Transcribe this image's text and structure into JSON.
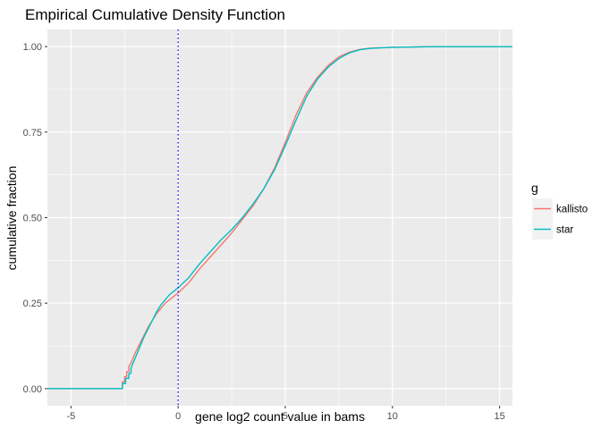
{
  "chart_data": {
    "type": "line",
    "title": "Empirical Cumulative Density Function",
    "xlabel": "gene log2 count value in bams",
    "ylabel": "cumulative fraction",
    "xlim": [
      -6.1,
      15.6
    ],
    "ylim": [
      -0.05,
      1.05
    ],
    "x_ticks": [
      -5,
      0,
      5,
      10,
      15
    ],
    "x_tick_labels": [
      "-5",
      "0",
      "5",
      "10",
      "15"
    ],
    "y_ticks": [
      0,
      0.25,
      0.5,
      0.75,
      1.0
    ],
    "y_tick_labels": [
      "0.00",
      "0.25",
      "0.50",
      "0.75",
      "1.00"
    ],
    "grid": true,
    "legend": {
      "title": "g",
      "position": "right"
    },
    "reference_line": {
      "x": 0,
      "color": "#0000ff",
      "style": "dotted"
    },
    "series": [
      {
        "name": "kallisto",
        "color": "#F8766D",
        "x": [
          -6.1,
          -2.6,
          -2.6,
          -2.5,
          -2.5,
          -2.4,
          -2.4,
          -2.3,
          -2.3,
          -2.2,
          -2.1,
          -2.0,
          -1.8,
          -1.6,
          -1.4,
          -1.2,
          -1.0,
          -0.8,
          -0.6,
          -0.4,
          -0.2,
          0.0,
          0.25,
          0.5,
          1.0,
          1.5,
          2.0,
          2.5,
          3.0,
          3.5,
          4.0,
          4.5,
          5.0,
          5.5,
          6.0,
          6.5,
          7.0,
          7.5,
          8.0,
          8.5,
          9.0,
          10.0,
          11.0,
          12.0,
          15.6
        ],
        "values": [
          0.0,
          0.0,
          0.02,
          0.02,
          0.035,
          0.035,
          0.05,
          0.05,
          0.065,
          0.075,
          0.09,
          0.105,
          0.13,
          0.155,
          0.18,
          0.2,
          0.22,
          0.235,
          0.25,
          0.26,
          0.27,
          0.28,
          0.295,
          0.31,
          0.35,
          0.385,
          0.42,
          0.455,
          0.495,
          0.535,
          0.585,
          0.645,
          0.72,
          0.8,
          0.865,
          0.91,
          0.945,
          0.97,
          0.984,
          0.992,
          0.996,
          0.998,
          0.999,
          1.0,
          1.0
        ]
      },
      {
        "name": "star",
        "color": "#00BFC4",
        "x": [
          -6.1,
          -2.6,
          -2.6,
          -2.45,
          -2.45,
          -2.3,
          -2.3,
          -2.2,
          -2.2,
          -2.1,
          -2.0,
          -1.8,
          -1.6,
          -1.4,
          -1.2,
          -1.0,
          -0.8,
          -0.6,
          -0.4,
          -0.2,
          0.0,
          0.25,
          0.5,
          1.0,
          1.5,
          2.0,
          2.5,
          3.0,
          3.5,
          4.0,
          4.5,
          5.0,
          5.5,
          6.0,
          6.5,
          7.0,
          7.5,
          8.0,
          8.5,
          9.0,
          10.0,
          11.0,
          12.0,
          15.6
        ],
        "values": [
          0.0,
          0.0,
          0.015,
          0.015,
          0.03,
          0.03,
          0.045,
          0.045,
          0.06,
          0.075,
          0.09,
          0.12,
          0.15,
          0.175,
          0.2,
          0.225,
          0.245,
          0.26,
          0.275,
          0.285,
          0.295,
          0.31,
          0.325,
          0.365,
          0.4,
          0.435,
          0.465,
          0.5,
          0.54,
          0.585,
          0.64,
          0.71,
          0.785,
          0.855,
          0.905,
          0.94,
          0.965,
          0.982,
          0.991,
          0.995,
          0.998,
          0.999,
          1.0,
          1.0
        ]
      }
    ]
  }
}
